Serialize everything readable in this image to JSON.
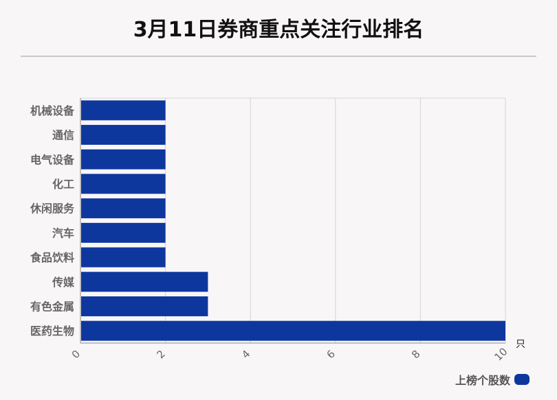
{
  "chart_data": {
    "type": "bar",
    "orientation": "horizontal",
    "title": "3月11日券商重点关注行业排名",
    "categories": [
      "机械设备",
      "通信",
      "电气设备",
      "化工",
      "休闲服务",
      "汽车",
      "食品饮料",
      "传媒",
      "有色金属",
      "医药生物"
    ],
    "series": [
      {
        "name": "上榜个股数",
        "values": [
          2,
          2,
          2,
          2,
          2,
          2,
          2,
          3,
          3,
          10
        ]
      }
    ],
    "xlim": [
      0,
      10
    ],
    "xticks": [
      "0",
      "2",
      "4",
      "6",
      "8",
      "10"
    ],
    "xunit": "只",
    "grid": true,
    "legend_position": "bottom-right",
    "bar_color": "#0e379e"
  }
}
